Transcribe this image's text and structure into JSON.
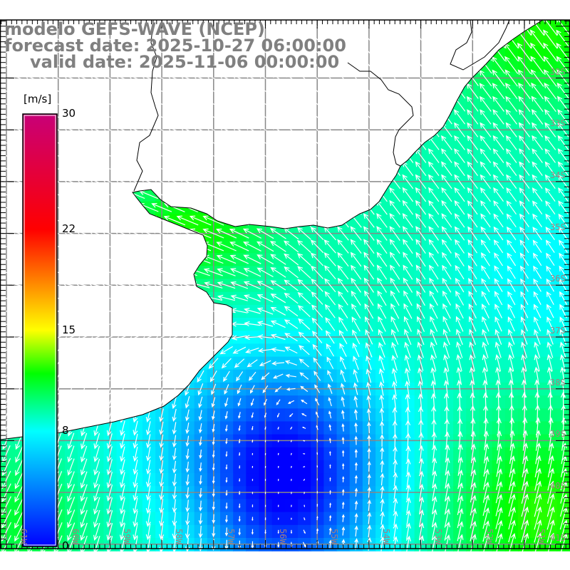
{
  "title": {
    "line1": "modelo GEFS-WAVE (NCEP)",
    "line2": "forecast date: 2025-10-27 06:00:00",
    "line3": "valid date: 2025-11-06 00:00:00"
  },
  "colorbar": {
    "units": "[m/s]",
    "ticks": [
      "30",
      "22",
      "15",
      "8",
      "0"
    ],
    "tick_values": [
      30,
      22,
      15,
      8,
      0
    ],
    "stops": [
      {
        "value": 0,
        "color": "#0000ff"
      },
      {
        "value": 8,
        "color": "#00ffff"
      },
      {
        "value": 12,
        "color": "#00ff00"
      },
      {
        "value": 15,
        "color": "#ffff00"
      },
      {
        "value": 22,
        "color": "#ff0000"
      },
      {
        "value": 30,
        "color": "#c80078"
      }
    ]
  },
  "axes": {
    "lat_labels": [
      "32S",
      "33S",
      "34S",
      "35S",
      "36S",
      "37S",
      "38S",
      "39S",
      "40S",
      "41S"
    ],
    "lon_labels": [
      "61W",
      "60W",
      "59W",
      "58W",
      "57W",
      "56W",
      "55W",
      "54W",
      "53W",
      "52W",
      "51W"
    ]
  }
}
